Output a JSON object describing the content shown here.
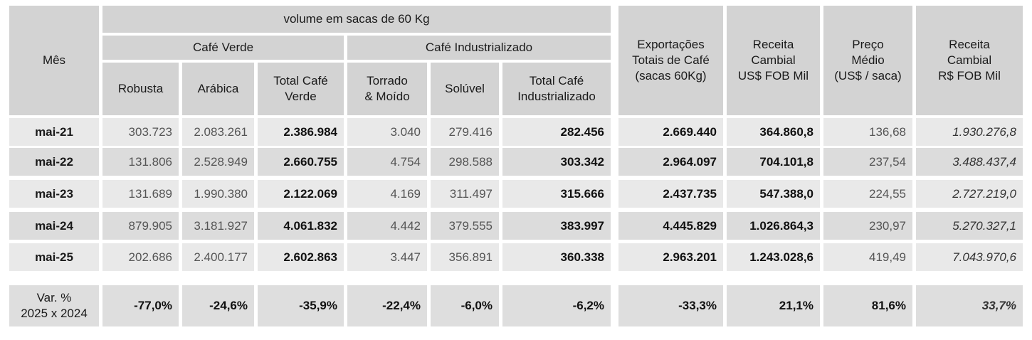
{
  "headers": {
    "mes": "Mês",
    "volume": "volume em sacas de 60 Kg",
    "cafe_verde": "Café Verde",
    "cafe_industrializado": "Café Industrializado",
    "robusta": "Robusta",
    "arabica": "Arábica",
    "total_verde": [
      "Total Café",
      "Verde"
    ],
    "torrado": [
      "Torrado",
      "& Moído"
    ],
    "soluvel": "Solúvel",
    "total_ind": [
      "Total Café",
      "Industrializado"
    ],
    "exportacoes": [
      "Exportações",
      "Totais de Café",
      "(sacas 60Kg)"
    ],
    "receita_usd": [
      "Receita",
      "Cambial",
      "US$ FOB Mil"
    ],
    "preco": [
      "Preço",
      "Médio",
      "(US$ / saca)"
    ],
    "receita_brl": [
      "Receita",
      "Cambial",
      "R$ FOB Mil"
    ]
  },
  "rows": [
    {
      "mes": "mai-21",
      "robusta": "303.723",
      "arabica": "2.083.261",
      "total_verde": "2.386.984",
      "torrado": "3.040",
      "soluvel": "279.416",
      "total_ind": "282.456",
      "exportacoes": "2.669.440",
      "receita_usd": "364.860,8",
      "preco": "136,68",
      "receita_brl": "1.930.276,8"
    },
    {
      "mes": "mai-22",
      "robusta": "131.806",
      "arabica": "2.528.949",
      "total_verde": "2.660.755",
      "torrado": "4.754",
      "soluvel": "298.588",
      "total_ind": "303.342",
      "exportacoes": "2.964.097",
      "receita_usd": "704.101,8",
      "preco": "237,54",
      "receita_brl": "3.488.437,4"
    },
    {
      "mes": "mai-23",
      "robusta": "131.689",
      "arabica": "1.990.380",
      "total_verde": "2.122.069",
      "torrado": "4.169",
      "soluvel": "311.497",
      "total_ind": "315.666",
      "exportacoes": "2.437.735",
      "receita_usd": "547.388,0",
      "preco": "224,55",
      "receita_brl": "2.727.219,0"
    },
    {
      "mes": "mai-24",
      "robusta": "879.905",
      "arabica": "3.181.927",
      "total_verde": "4.061.832",
      "torrado": "4.442",
      "soluvel": "379.555",
      "total_ind": "383.997",
      "exportacoes": "4.445.829",
      "receita_usd": "1.026.864,3",
      "preco": "230,97",
      "receita_brl": "5.270.327,1"
    },
    {
      "mes": "mai-25",
      "robusta": "202.686",
      "arabica": "2.400.177",
      "total_verde": "2.602.863",
      "torrado": "3.447",
      "soluvel": "356.891",
      "total_ind": "360.338",
      "exportacoes": "2.963.201",
      "receita_usd": "1.243.028,6",
      "preco": "419,49",
      "receita_brl": "7.043.970,6"
    }
  ],
  "variation": {
    "label": [
      "Var. %",
      "2025 x 2024"
    ],
    "robusta": "-77,0%",
    "arabica": "-24,6%",
    "total_verde": "-35,9%",
    "torrado": "-22,4%",
    "soluvel": "-6,0%",
    "total_ind": "-6,2%",
    "exportacoes": "-33,3%",
    "receita_usd": "21,1%",
    "preco": "81,6%",
    "receita_brl": "33,7%"
  },
  "colors": {
    "header_bg": "#d3d3d3",
    "row_light": "#e9e9e9",
    "row_dark": "#dcdcdc"
  }
}
